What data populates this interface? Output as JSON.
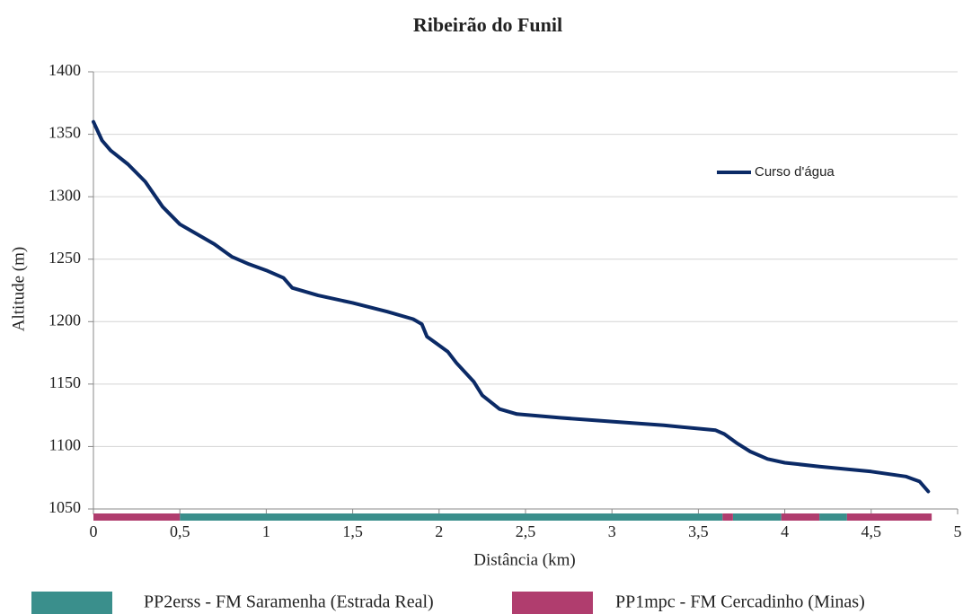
{
  "chart_data": {
    "type": "line",
    "title": "Ribeirão do Funil",
    "xlabel": "Distância (km)",
    "ylabel": "Altitude (m)",
    "xlim": [
      0,
      5
    ],
    "ylim": [
      1050,
      1400
    ],
    "xticks": [
      0,
      {
        "value": 0.5,
        "label": "0,5"
      },
      1,
      {
        "value": 1.5,
        "label": "1,5"
      },
      2,
      {
        "value": 2.5,
        "label": "2,5"
      },
      3,
      {
        "value": 3.5,
        "label": "3,5"
      },
      4,
      {
        "value": 4.5,
        "label": "4,5"
      },
      5
    ],
    "yticks": [
      1050,
      1100,
      1150,
      1200,
      1250,
      1300,
      1350,
      1400
    ],
    "grid": true,
    "x": [
      0,
      0.05,
      0.1,
      0.2,
      0.3,
      0.4,
      0.5,
      0.6,
      0.7,
      0.8,
      0.9,
      1.0,
      1.1,
      1.15,
      1.3,
      1.5,
      1.7,
      1.85,
      1.9,
      1.93,
      2.0,
      2.05,
      2.1,
      2.2,
      2.25,
      2.35,
      2.45,
      2.7,
      3.0,
      3.3,
      3.6,
      3.65,
      3.72,
      3.8,
      3.9,
      4.0,
      4.2,
      4.5,
      4.7,
      4.78,
      4.83
    ],
    "series": [
      {
        "name": "Curso d'água",
        "color": "#0b2a66",
        "values": [
          1360,
          1345,
          1337,
          1326,
          1312,
          1292,
          1278,
          1270,
          1262,
          1252,
          1246,
          1241,
          1235,
          1227,
          1221,
          1215,
          1208,
          1202,
          1198,
          1188,
          1181,
          1176,
          1167,
          1152,
          1141,
          1130,
          1126,
          1123,
          1120,
          1117,
          1113,
          1110,
          1103,
          1096,
          1090,
          1087,
          1084,
          1080,
          1076,
          1072,
          1064
        ]
      }
    ],
    "formations": [
      {
        "name": "PP2erss - FM Saramenha (Estrada Real)",
        "color": "#3a8f8c",
        "intervals": [
          [
            0.5,
            3.64
          ],
          [
            3.7,
            3.98
          ],
          [
            4.2,
            4.36
          ]
        ]
      },
      {
        "name": "PP1mpc - FM Cercadinho (Minas)",
        "color": "#b03d6e",
        "intervals": [
          [
            0,
            0.5
          ],
          [
            3.64,
            3.7
          ],
          [
            3.98,
            4.2
          ],
          [
            4.36,
            4.85
          ]
        ]
      }
    ]
  }
}
